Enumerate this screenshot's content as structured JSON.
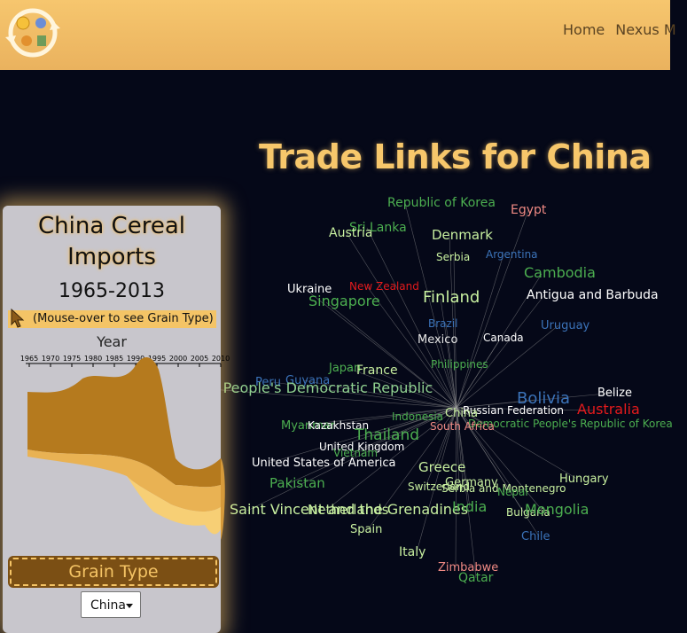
{
  "nav": {
    "items": [
      "Home",
      "Nexus M"
    ]
  },
  "page_title": "Trade Links for China",
  "panel": {
    "title": "China Cereal Imports",
    "range": "1965-2013",
    "hint": "(Mouse-over to see Grain Type)",
    "axis_title": "Year",
    "year_ticks": [
      "1965",
      "1970",
      "1975",
      "1980",
      "1985",
      "1990",
      "1995",
      "2000",
      "2005",
      "2010"
    ],
    "grain_label": "Grain Type",
    "country_select": "China"
  },
  "network": {
    "center_color": "#9a9a9a",
    "nodes": [
      {
        "label": "Republic of Korea",
        "color": "#4caf50"
      },
      {
        "label": "Egypt",
        "color": "#f08a84"
      },
      {
        "label": "Sri Lanka",
        "color": "#4caf50"
      },
      {
        "label": "Austria",
        "color": "#c8f0a0"
      },
      {
        "label": "Denmark",
        "color": "#c8f0a0"
      },
      {
        "label": "Serbia",
        "color": "#c8f0a0"
      },
      {
        "label": "Argentina",
        "color": "#3b73b9"
      },
      {
        "label": "Cambodia",
        "color": "#4caf50"
      },
      {
        "label": "Ukraine",
        "color": "#ffffff"
      },
      {
        "label": "New Zealand",
        "color": "#e41a1c"
      },
      {
        "label": "Singapore",
        "color": "#4caf50"
      },
      {
        "label": "Finland",
        "color": "#c8f0a0"
      },
      {
        "label": "Antigua and Barbuda",
        "color": "#ffffff"
      },
      {
        "label": "Brazil",
        "color": "#3b73b9"
      },
      {
        "label": "Uruguay",
        "color": "#3b73b9"
      },
      {
        "label": "Mexico",
        "color": "#e6e6e6"
      },
      {
        "label": "Canada",
        "color": "#ffffff"
      },
      {
        "label": "Philippines",
        "color": "#4caf50"
      },
      {
        "label": "Japan",
        "color": "#4caf50"
      },
      {
        "label": "France",
        "color": "#c8f0a0"
      },
      {
        "label": "Peru",
        "color": "#3b73b9"
      },
      {
        "label": "Guyana",
        "color": "#3b73b9"
      },
      {
        "label": "Lao People's Democratic Republic",
        "color": "#8fd08f"
      },
      {
        "label": "Bolivia",
        "color": "#3b73b9"
      },
      {
        "label": "Belize",
        "color": "#ffffff"
      },
      {
        "label": "Russian Federation",
        "color": "#ffffff"
      },
      {
        "label": "Australia",
        "color": "#e41a1c"
      },
      {
        "label": "Indonesia",
        "color": "#4caf50"
      },
      {
        "label": "China",
        "color": "#c8f0a0"
      },
      {
        "label": "Democratic People's Republic of Korea",
        "color": "#4caf50"
      },
      {
        "label": "Myanmar",
        "color": "#4caf50"
      },
      {
        "label": "Kazakhstan",
        "color": "#ffffff"
      },
      {
        "label": "South Africa",
        "color": "#f08a84"
      },
      {
        "label": "Thailand",
        "color": "#4caf50"
      },
      {
        "label": "United Kingdom",
        "color": "#ffffff"
      },
      {
        "label": "Vietnam",
        "color": "#4caf50"
      },
      {
        "label": "United States of America",
        "color": "#ffffff"
      },
      {
        "label": "Greece",
        "color": "#c8f0a0"
      },
      {
        "label": "Hungary",
        "color": "#c8f0a0"
      },
      {
        "label": "Pakistan",
        "color": "#4caf50"
      },
      {
        "label": "Germany",
        "color": "#c8f0a0"
      },
      {
        "label": "Switzerland",
        "color": "#c8f0a0"
      },
      {
        "label": "Serbia and Montenegro",
        "color": "#c8f0a0"
      },
      {
        "label": "Nepal",
        "color": "#4caf50"
      },
      {
        "label": "Saint Vincent and the Grenadines",
        "color": "#c8f0a0"
      },
      {
        "label": "Netherlands",
        "color": "#c8f0a0"
      },
      {
        "label": "India",
        "color": "#4caf50"
      },
      {
        "label": "Bulgaria",
        "color": "#c8f0a0"
      },
      {
        "label": "Mongolia",
        "color": "#4caf50"
      },
      {
        "label": "Spain",
        "color": "#c8f0a0"
      },
      {
        "label": "Chile",
        "color": "#3b73b9"
      },
      {
        "label": "Italy",
        "color": "#c8f0a0"
      },
      {
        "label": "Zimbabwe",
        "color": "#f08a84"
      },
      {
        "label": "Qatar",
        "color": "#4caf50"
      }
    ]
  },
  "colors": {
    "header": "#f0bc66",
    "background": "#050818",
    "accent": "#f7c76b",
    "stream_dark": "#b57a1e",
    "stream_mid": "#e9b253",
    "stream_light": "#f7cf75"
  }
}
